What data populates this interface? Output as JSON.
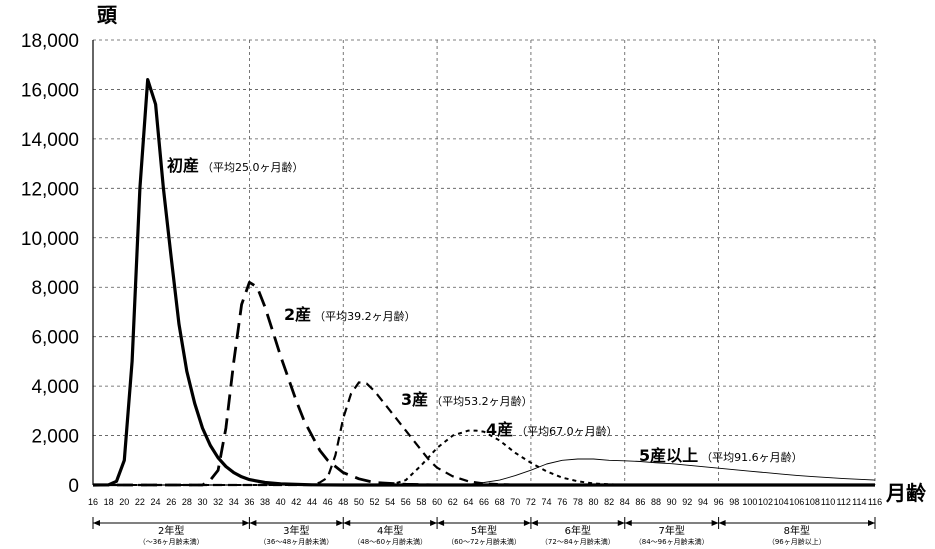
{
  "chart_data": {
    "type": "line",
    "ylabel": "頭",
    "xlabel": "月齢",
    "ylim": [
      0,
      18000
    ],
    "xlim": [
      16,
      116
    ],
    "yticks": [
      0,
      2000,
      4000,
      6000,
      8000,
      10000,
      12000,
      14000,
      16000,
      18000
    ],
    "ytick_labels": [
      "0",
      "2,000",
      "4,000",
      "6,000",
      "8,000",
      "10,000",
      "12,000",
      "14,000",
      "16,000",
      "18,000"
    ],
    "xticks": [
      16,
      18,
      20,
      22,
      24,
      26,
      28,
      30,
      32,
      34,
      36,
      38,
      40,
      42,
      44,
      46,
      48,
      50,
      52,
      54,
      56,
      58,
      60,
      62,
      64,
      66,
      68,
      70,
      72,
      74,
      76,
      78,
      80,
      82,
      84,
      86,
      88,
      90,
      92,
      94,
      96,
      98,
      100,
      102,
      104,
      106,
      108,
      110,
      112,
      114,
      116
    ],
    "grid": true,
    "series": [
      {
        "name": "初産",
        "note": "（平均25.0ヶ月齢）",
        "style": "solid-thick",
        "x": [
          16,
          18,
          19,
          20,
          21,
          22,
          23,
          24,
          25,
          26,
          27,
          28,
          29,
          30,
          31,
          32,
          33,
          34,
          35,
          36,
          38,
          40,
          42,
          44,
          48,
          56,
          72,
          96,
          116
        ],
        "y": [
          0,
          10,
          150,
          1000,
          5000,
          12000,
          16400,
          15400,
          12000,
          9200,
          6500,
          4600,
          3300,
          2300,
          1600,
          1100,
          750,
          500,
          330,
          220,
          100,
          50,
          25,
          10,
          0,
          0,
          0,
          0,
          0
        ]
      },
      {
        "name": "2産",
        "note": "（平均39.2ヶ月齢）",
        "style": "long-dash",
        "x": [
          16,
          30,
          31,
          32,
          33,
          34,
          35,
          36,
          37,
          38,
          39,
          40,
          41,
          42,
          43,
          44,
          45,
          46,
          48,
          50,
          52,
          56,
          60,
          72,
          116
        ],
        "y": [
          0,
          0,
          200,
          600,
          2300,
          5000,
          7300,
          8200,
          8000,
          7200,
          6200,
          5200,
          4300,
          3400,
          2600,
          2000,
          1400,
          1000,
          500,
          250,
          100,
          30,
          0,
          0,
          0
        ]
      },
      {
        "name": "3産",
        "note": "（平均53.2ヶ月齢）",
        "style": "medium-dash",
        "x": [
          16,
          44,
          45,
          46,
          47,
          48,
          49,
          50,
          51,
          52,
          53,
          54,
          55,
          56,
          57,
          58,
          59,
          60,
          62,
          64,
          66,
          70,
          74,
          116
        ],
        "y": [
          0,
          0,
          100,
          300,
          1200,
          2700,
          3700,
          4150,
          4100,
          3800,
          3400,
          3000,
          2600,
          2200,
          1800,
          1400,
          1000,
          700,
          350,
          150,
          60,
          10,
          0,
          0
        ]
      },
      {
        "name": "4産",
        "note": "（平均67.0ヶ月齢）",
        "style": "short-dash",
        "x": [
          16,
          54,
          56,
          58,
          60,
          62,
          64,
          65,
          66,
          68,
          70,
          72,
          74,
          76,
          78,
          80,
          84,
          116
        ],
        "y": [
          0,
          0,
          200,
          800,
          1500,
          2000,
          2200,
          2200,
          2150,
          1800,
          1300,
          900,
          550,
          300,
          150,
          60,
          0,
          0
        ]
      },
      {
        "name": "5産以上",
        "note": "（平均91.6ヶ月齢）",
        "style": "thin",
        "x": [
          16,
          62,
          64,
          66,
          68,
          70,
          72,
          74,
          76,
          78,
          80,
          82,
          84,
          86,
          88,
          90,
          92,
          94,
          96,
          98,
          100,
          102,
          104,
          106,
          108,
          110,
          112,
          114,
          116
        ],
        "y": [
          0,
          0,
          30,
          100,
          200,
          380,
          600,
          850,
          1000,
          1050,
          1050,
          1000,
          980,
          950,
          900,
          860,
          800,
          740,
          680,
          620,
          560,
          500,
          440,
          390,
          340,
          300,
          260,
          230,
          200
        ]
      }
    ],
    "age_types": [
      {
        "name": "2年型",
        "range": "（〜36ヶ月齢未満）",
        "start": 16,
        "end": 36
      },
      {
        "name": "3年型",
        "range": "（36〜48ヶ月齢未満）",
        "start": 36,
        "end": 48
      },
      {
        "name": "4年型",
        "range": "（48〜60ヶ月齢未満）",
        "start": 48,
        "end": 60
      },
      {
        "name": "5年型",
        "range": "（60〜72ヶ月齢未満）",
        "start": 60,
        "end": 72
      },
      {
        "name": "6年型",
        "range": "（72〜84ヶ月齢未満）",
        "start": 72,
        "end": 84
      },
      {
        "name": "7年型",
        "range": "（84〜96ヶ月齢未満）",
        "start": 84,
        "end": 96
      },
      {
        "name": "8年型",
        "range": "（96ヶ月齢以上）",
        "start": 96,
        "end": 116
      }
    ]
  }
}
